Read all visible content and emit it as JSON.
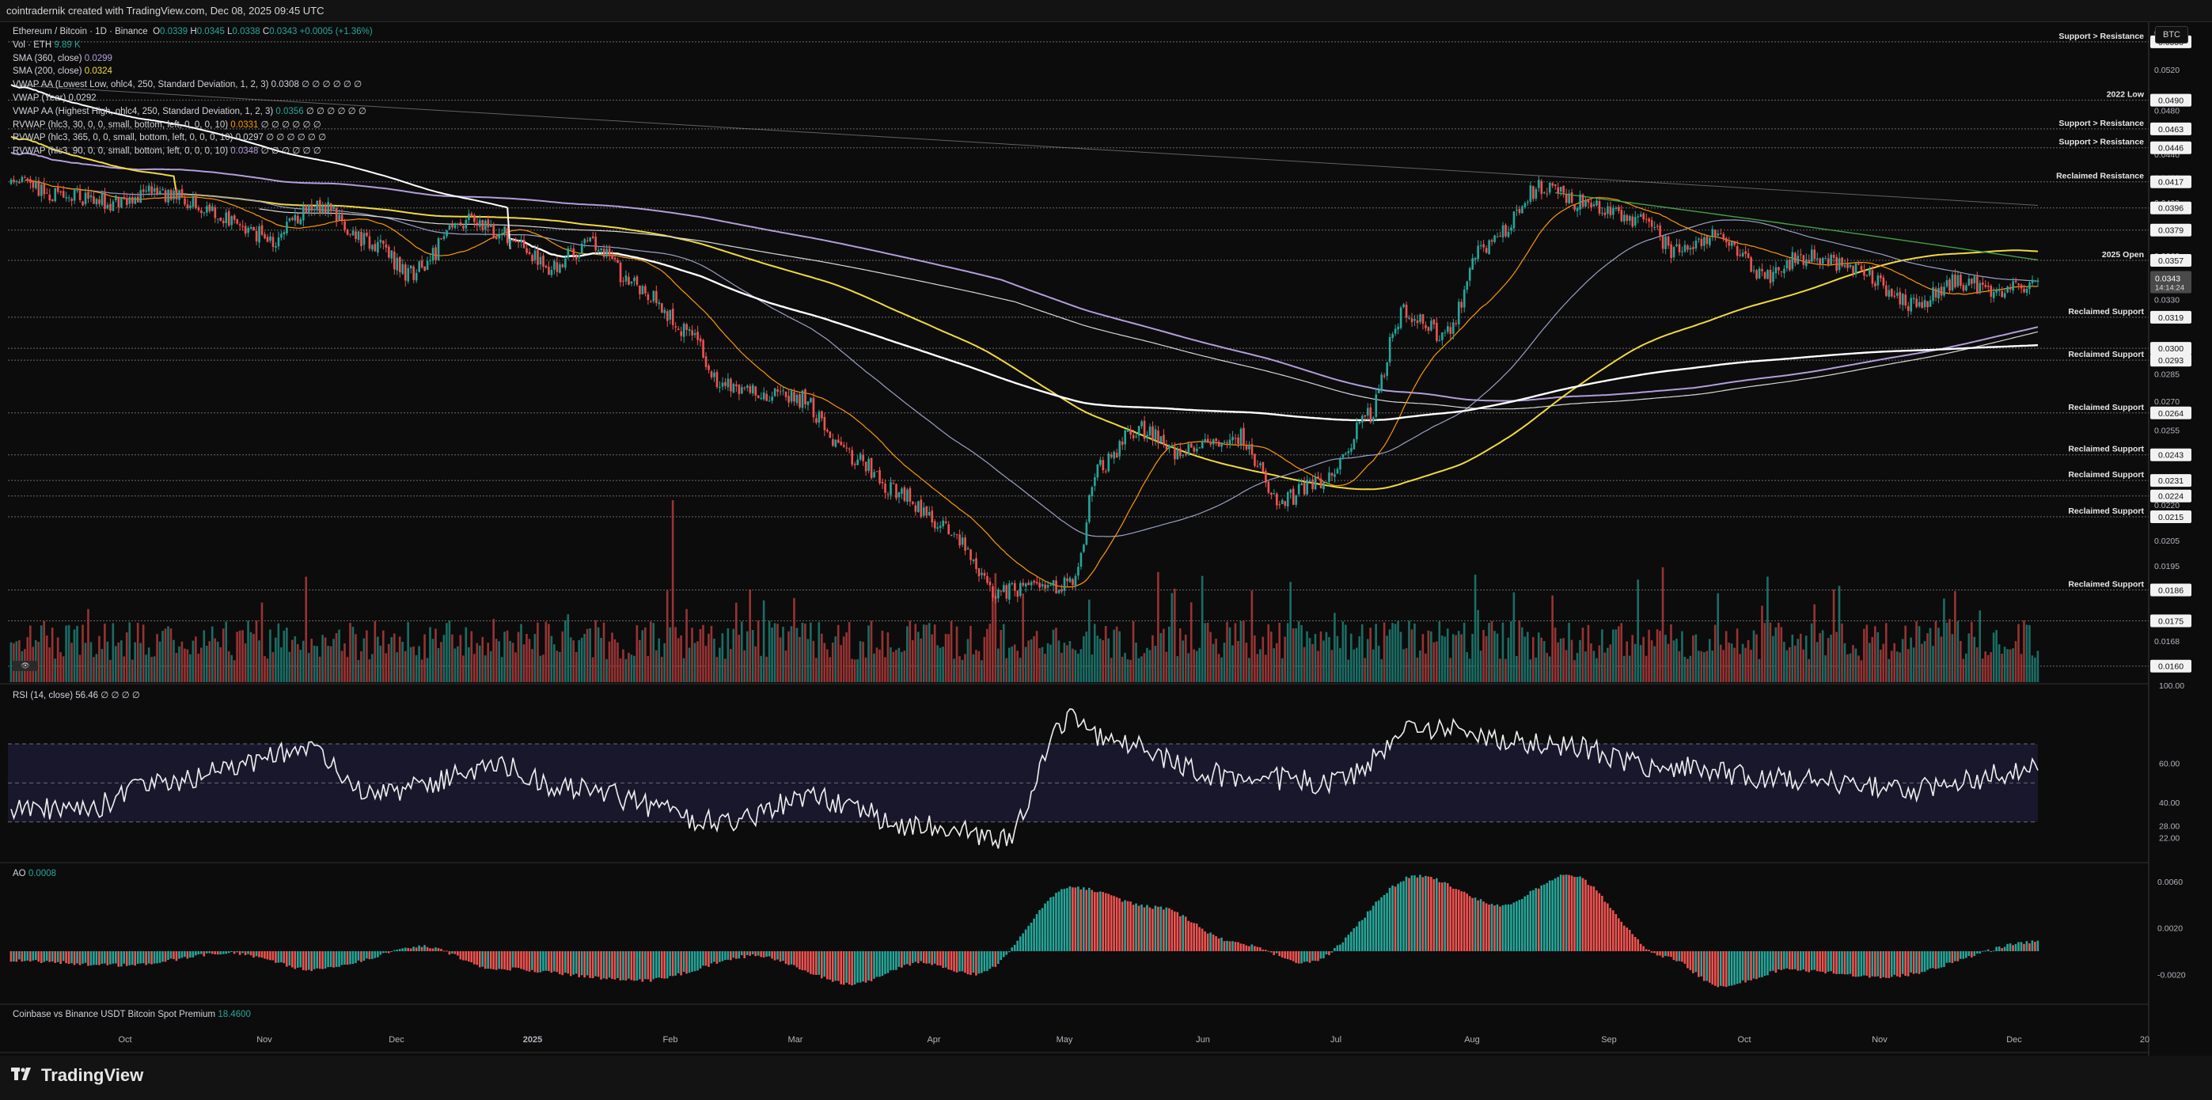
{
  "header": {
    "text": "cointradernik created with TradingView.com, Dec 08, 2025 09:45 UTC"
  },
  "footer": {
    "brand": "TradingView"
  },
  "currency_button": "BTC",
  "icon": {
    "tv_logo": "tradingview-logo-icon",
    "volume_toggle": "eye-icon"
  },
  "legend": {
    "main": {
      "symbol": "Ethereum / Bitcoin · 1D · Binance",
      "o_label": "O",
      "o": "0.0339",
      "h_label": "H",
      "h": "0.0345",
      "l_label": "L",
      "l": "0.0338",
      "c_label": "C",
      "c": "0.0343",
      "change": "+0.0005 (+1.36%)"
    },
    "vol": {
      "label": "Vol · ETH",
      "value": "9.89 K"
    },
    "sma360": {
      "label": "SMA (360, close)",
      "value": "0.0299"
    },
    "sma200": {
      "label": "SMA (200, close)",
      "value": "0.0324"
    },
    "vwap_low": {
      "label": "VWAP AA (Lowest Low, ohlc4, 250, Standard Deviation, 1, 2, 3)",
      "value": "0.0308",
      "tail": "∅ ∅ ∅ ∅ ∅ ∅"
    },
    "vwap_year": {
      "label": "VWAP (Year)",
      "value": "0.0292"
    },
    "vwap_high": {
      "label": "VWAP AA (Highest High, ohlc4, 250, Standard Deviation, 1, 2, 3)",
      "value": "0.0356",
      "tail": "∅ ∅ ∅ ∅ ∅ ∅"
    },
    "rvwap30": {
      "label": "RVWAP (hlc3, 30, 0, 0, small, bottom, left, 0, 0, 0, 10)",
      "value": "0.0331",
      "tail": "∅ ∅ ∅ ∅ ∅ ∅"
    },
    "rvwap365": {
      "label": "RVWAP (hlc3, 365, 0, 0, small, bottom, left, 0, 0, 0, 10)",
      "value": "0.0297",
      "tail": "∅ ∅ ∅ ∅ ∅ ∅"
    },
    "rvwap90": {
      "label": "RVWAP (hlc3, 90, 0, 0, small, bottom, left, 0, 0, 0, 10)",
      "value": "0.0348",
      "tail": "∅ ∅ ∅ ∅ ∅ ∅"
    }
  },
  "rsi_legend": {
    "label": "RSI (14, close)",
    "value": "56.46",
    "tail": "∅ ∅ ∅ ∅"
  },
  "ao_legend": {
    "label": "AO",
    "value": "0.0008"
  },
  "premium_legend": {
    "label": "Coinbase vs Binance USDT Bitcoin Spot Premium",
    "value": "18.4600"
  },
  "colors": {
    "up": "#26a69a",
    "down": "#ef5350",
    "sma200": "#f0d93c",
    "sma360": "#b39ddb",
    "vwap_year": "#ffffff",
    "rvwap30": "#ff9800",
    "rvwap90": "#9aa0c8",
    "rvwap365": "#d8d8d8",
    "hv_green": "#43a047"
  },
  "chart_data": [
    {
      "type": "candlestick",
      "title": "Ethereum / Bitcoin · 1D · Binance",
      "x_ticks": [
        "Oct",
        "Nov",
        "Dec",
        "2025",
        "Feb",
        "Mar",
        "Apr",
        "May",
        "Jun",
        "Jul",
        "Aug",
        "Sep",
        "Oct",
        "Nov",
        "Dec",
        "20"
      ],
      "y_ticks": [
        "0.0560",
        "0.0520",
        "0.0480",
        "0.0440",
        "0.0420",
        "0.0400",
        "0.0380",
        "0.0360",
        "0.0340",
        "0.0330",
        "0.0320",
        "0.0300",
        "0.0285",
        "0.0270",
        "0.0255",
        "0.0243",
        "0.0230",
        "0.0220",
        "0.0205",
        "0.0195",
        "0.0168",
        "0.0160"
      ],
      "ylim": [
        0.0155,
        0.057
      ],
      "scale": "log",
      "price_knots": [
        [
          0,
          0.0415
        ],
        [
          20,
          0.0405
        ],
        [
          40,
          0.04
        ],
        [
          50,
          0.0408
        ],
        [
          60,
          0.0404
        ],
        [
          80,
          0.0385
        ],
        [
          95,
          0.0372
        ],
        [
          110,
          0.0398
        ],
        [
          130,
          0.037
        ],
        [
          145,
          0.0348
        ],
        [
          165,
          0.0385
        ],
        [
          180,
          0.0376
        ],
        [
          195,
          0.0352
        ],
        [
          210,
          0.0368
        ],
        [
          228,
          0.0338
        ],
        [
          245,
          0.0312
        ],
        [
          258,
          0.0278
        ],
        [
          285,
          0.0272
        ],
        [
          305,
          0.0242
        ],
        [
          322,
          0.0226
        ],
        [
          338,
          0.021
        ],
        [
          358,
          0.0185
        ],
        [
          385,
          0.0188
        ],
        [
          395,
          0.0238
        ],
        [
          408,
          0.0256
        ],
        [
          425,
          0.0244
        ],
        [
          445,
          0.0252
        ],
        [
          460,
          0.0222
        ],
        [
          478,
          0.0232
        ],
        [
          492,
          0.0262
        ],
        [
          505,
          0.0322
        ],
        [
          520,
          0.0308
        ],
        [
          535,
          0.0368
        ],
        [
          555,
          0.0413
        ],
        [
          570,
          0.04
        ],
        [
          590,
          0.0388
        ],
        [
          605,
          0.0362
        ],
        [
          620,
          0.0375
        ],
        [
          635,
          0.0345
        ],
        [
          650,
          0.036
        ],
        [
          670,
          0.035
        ],
        [
          690,
          0.0327
        ],
        [
          705,
          0.0342
        ],
        [
          722,
          0.0336
        ],
        [
          735,
          0.0339
        ]
      ],
      "candle_count": 736,
      "last_price": "0.0343",
      "countdown": "14:14:24",
      "volume_spikes": [
        [
          240,
          1.0
        ],
        [
          637,
          0.58
        ],
        [
          705,
          0.5
        ],
        [
          100,
          0.3
        ],
        [
          212,
          0.34
        ],
        [
          393,
          0.32
        ],
        [
          480,
          0.38
        ],
        [
          502,
          0.32
        ]
      ],
      "price_labels": [
        {
          "price": 0.055,
          "value": "0.0550",
          "label": "Support > Resistance",
          "color": "#ffffff"
        },
        {
          "price": 0.049,
          "value": "0.0490",
          "label": "2022 Low",
          "color": "#ffffff"
        },
        {
          "price": 0.0463,
          "value": "0.0463",
          "label": "Support > Resistance",
          "color": "#ffffff"
        },
        {
          "price": 0.0446,
          "value": "0.0446",
          "label": "Support > Resistance",
          "color": "#ffffff"
        },
        {
          "price": 0.0417,
          "value": "0.0417",
          "label": "Reclaimed Resistance",
          "color": "#ffffff"
        },
        {
          "price": 0.0396,
          "value": "0.0396",
          "label": "",
          "color": "#ffffff"
        },
        {
          "price": 0.0379,
          "value": "0.0379",
          "label": "",
          "color": "#ffffff"
        },
        {
          "price": 0.0357,
          "value": "0.0357",
          "label": "2025 Open",
          "color": "#ffffff"
        },
        {
          "price": 0.0319,
          "value": "0.0319",
          "label": "Reclaimed Support",
          "color": "#ffffff"
        },
        {
          "price": 0.03,
          "value": "0.0300",
          "label": "",
          "color": "#ffffff"
        },
        {
          "price": 0.0293,
          "value": "0.0293",
          "label": "Reclaimed Support",
          "color": "#ffffff"
        },
        {
          "price": 0.0264,
          "value": "0.0264",
          "label": "Reclaimed Support",
          "color": "#ffffff"
        },
        {
          "price": 0.0243,
          "value": "0.0243",
          "label": "Reclaimed Support",
          "color": "#ffffff"
        },
        {
          "price": 0.0231,
          "value": "0.0231",
          "label": "Reclaimed Support",
          "color": "#ffffff"
        },
        {
          "price": 0.0224,
          "value": "0.0224",
          "label": "",
          "color": "#ffffff"
        },
        {
          "price": 0.0215,
          "value": "0.0215",
          "label": "Reclaimed Support",
          "color": "#ffffff"
        },
        {
          "price": 0.0186,
          "value": "0.0186",
          "label": "Reclaimed Support",
          "color": "#ffffff"
        },
        {
          "price": 0.0175,
          "value": "0.0175",
          "label": "",
          "color": "#ffffff"
        },
        {
          "price": 0.016,
          "value": "0.0160",
          "label": "",
          "color": "#ffffff"
        }
      ]
    },
    {
      "type": "line",
      "title": "RSI (14, close)",
      "y_ticks": [
        "100.00",
        "60.00",
        "40.00",
        "28.00",
        "22.00"
      ],
      "bands": [
        70,
        50,
        30
      ],
      "ylim": [
        10,
        100
      ],
      "knots": [
        [
          0,
          38
        ],
        [
          25,
          35
        ],
        [
          50,
          50
        ],
        [
          110,
          66
        ],
        [
          130,
          44
        ],
        [
          180,
          58
        ],
        [
          200,
          48
        ],
        [
          258,
          30
        ],
        [
          290,
          42
        ],
        [
          330,
          28
        ],
        [
          360,
          22
        ],
        [
          385,
          84
        ],
        [
          400,
          70
        ],
        [
          440,
          54
        ],
        [
          480,
          50
        ],
        [
          510,
          78
        ],
        [
          560,
          70
        ],
        [
          600,
          58
        ],
        [
          640,
          52
        ],
        [
          690,
          47
        ],
        [
          735,
          56.5
        ]
      ]
    },
    {
      "type": "bar",
      "title": "AO",
      "y_ticks": [
        "0.0060",
        "0.0020",
        "-0.0020"
      ],
      "ylim": [
        -0.0045,
        0.0075
      ],
      "knots": [
        [
          0,
          -0.0008
        ],
        [
          40,
          -0.0012
        ],
        [
          80,
          -0.0002
        ],
        [
          110,
          -0.0016
        ],
        [
          150,
          0.0004
        ],
        [
          175,
          -0.0015
        ],
        [
          230,
          -0.0025
        ],
        [
          270,
          -0.0004
        ],
        [
          305,
          -0.0028
        ],
        [
          330,
          -0.001
        ],
        [
          350,
          -0.002
        ],
        [
          385,
          0.0055
        ],
        [
          415,
          0.0038
        ],
        [
          445,
          0.0007
        ],
        [
          470,
          -0.001
        ],
        [
          510,
          0.0065
        ],
        [
          540,
          0.004
        ],
        [
          565,
          0.0066
        ],
        [
          600,
          -0.0005
        ],
        [
          620,
          -0.003
        ],
        [
          645,
          -0.0016
        ],
        [
          680,
          -0.0022
        ],
        [
          735,
          0.0008
        ]
      ]
    }
  ]
}
